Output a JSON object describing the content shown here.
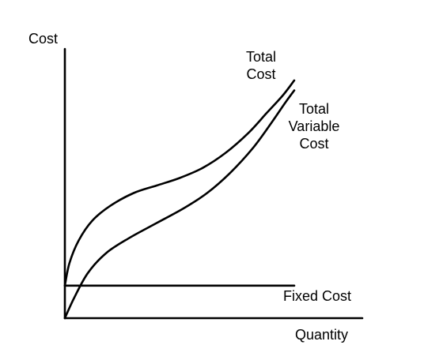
{
  "chart_data": {
    "type": "line",
    "title": "",
    "xlabel": "Quantity",
    "ylabel": "Cost",
    "grid": false,
    "legend": "none",
    "x_ticks": [],
    "y_ticks": [],
    "series": [
      {
        "name": "Total Cost",
        "label_lines": [
          "Total",
          "Cost"
        ],
        "points": [
          [
            0.0,
            0.13
          ],
          [
            0.02,
            0.22
          ],
          [
            0.06,
            0.31
          ],
          [
            0.12,
            0.39
          ],
          [
            0.2,
            0.45
          ],
          [
            0.3,
            0.5
          ],
          [
            0.4,
            0.53
          ],
          [
            0.5,
            0.56
          ],
          [
            0.6,
            0.6
          ],
          [
            0.7,
            0.66
          ],
          [
            0.8,
            0.74
          ],
          [
            0.88,
            0.82
          ],
          [
            0.95,
            0.89
          ],
          [
            1.0,
            0.95
          ]
        ]
      },
      {
        "name": "Total Variable Cost",
        "label_lines": [
          "Total",
          "Variable",
          "Cost"
        ],
        "points": [
          [
            0.0,
            0.0
          ],
          [
            0.04,
            0.08
          ],
          [
            0.1,
            0.18
          ],
          [
            0.18,
            0.26
          ],
          [
            0.28,
            0.32
          ],
          [
            0.4,
            0.38
          ],
          [
            0.52,
            0.44
          ],
          [
            0.62,
            0.5
          ],
          [
            0.72,
            0.58
          ],
          [
            0.82,
            0.68
          ],
          [
            0.9,
            0.78
          ],
          [
            0.96,
            0.86
          ],
          [
            1.0,
            0.91
          ]
        ]
      },
      {
        "name": "Fixed Cost",
        "label_lines": [
          "Fixed Cost"
        ],
        "points": [
          [
            0.0,
            0.13
          ],
          [
            1.0,
            0.13
          ]
        ]
      }
    ]
  }
}
